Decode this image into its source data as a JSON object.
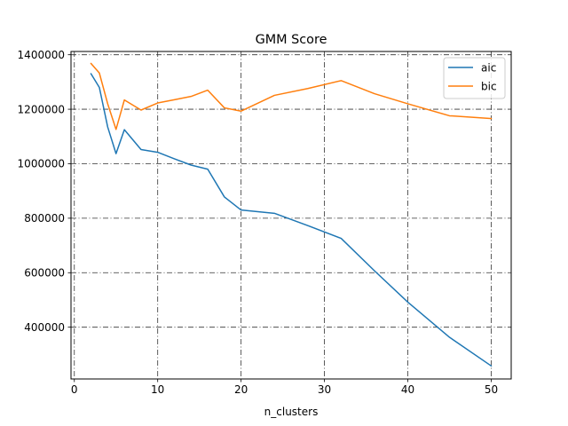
{
  "chart_data": {
    "type": "line",
    "title": "GMM Score",
    "xlabel": "n_clusters",
    "ylabel": "",
    "xlim": [
      -0.4,
      52.4
    ],
    "ylim": [
      210000,
      1412000
    ],
    "xticks": [
      0,
      10,
      20,
      30,
      40,
      50
    ],
    "yticks": [
      400000,
      600000,
      800000,
      1000000,
      1200000,
      1400000
    ],
    "grid": true,
    "grid_style": "dash-dot",
    "legend_position": "top-right",
    "x": [
      2,
      3,
      4,
      5,
      6,
      8,
      10,
      12,
      14,
      16,
      18,
      20,
      24,
      28,
      32,
      36,
      40,
      45,
      50
    ],
    "series": [
      {
        "name": "aic",
        "color": "#1f77b4",
        "values": [
          1330000,
          1280000,
          1135000,
          1037000,
          1125000,
          1052000,
          1042000,
          1018000,
          995000,
          980000,
          878000,
          830000,
          818000,
          773000,
          726000,
          607000,
          492000,
          363000,
          258000
        ]
      },
      {
        "name": "bic",
        "color": "#ff7f0e",
        "values": [
          1368000,
          1333000,
          1220000,
          1126000,
          1234000,
          1197000,
          1223000,
          1235000,
          1247000,
          1270000,
          1205000,
          1193000,
          1251000,
          1276000,
          1305000,
          1257000,
          1220000,
          1176000,
          1166000
        ]
      }
    ]
  }
}
